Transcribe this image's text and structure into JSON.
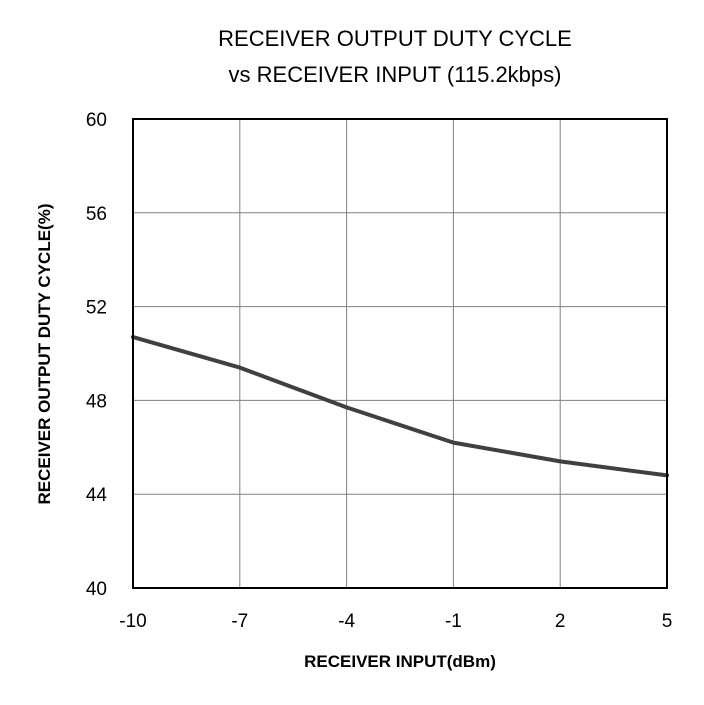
{
  "chart_data": {
    "type": "line",
    "title_lines": [
      "RECEIVER OUTPUT DUTY CYCLE",
      "vs RECEIVER INPUT (115.2kbps)"
    ],
    "xlabel": "RECEIVER INPUT(dBm)",
    "ylabel": "RECEIVER OUTPUT DUTY CYCLE(%)",
    "xlim": [
      -10,
      5
    ],
    "ylim": [
      40,
      60
    ],
    "x_ticks": [
      -10,
      -7,
      -4,
      -1,
      2,
      5
    ],
    "y_ticks": [
      40,
      44,
      48,
      52,
      56,
      60
    ],
    "grid": true,
    "legend": "none",
    "series": [
      {
        "color": "#404040",
        "x": [
          -10,
          -7,
          -4,
          -1,
          2,
          5
        ],
        "y": [
          50.7,
          49.4,
          47.7,
          46.2,
          45.4,
          44.8
        ]
      }
    ]
  }
}
